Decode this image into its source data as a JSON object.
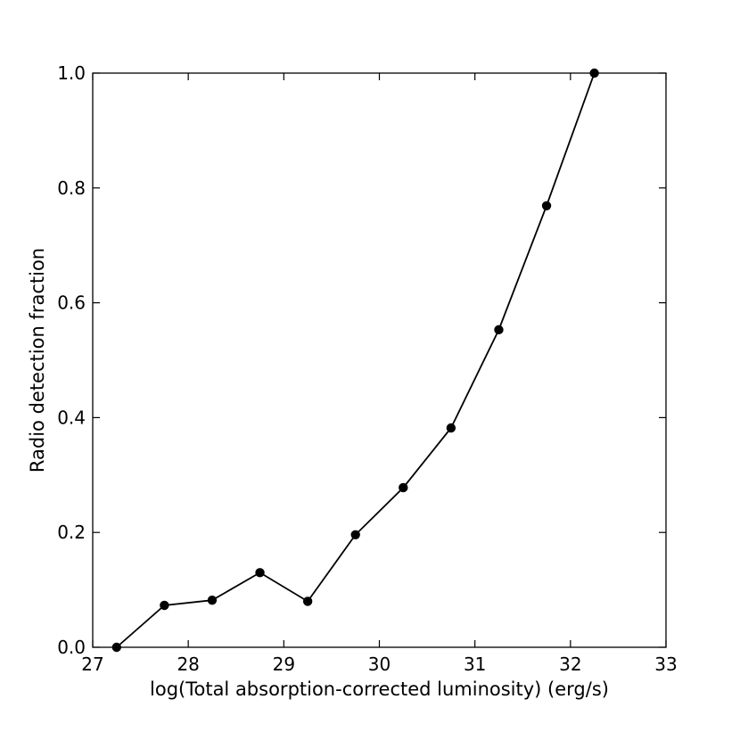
{
  "chart_data": {
    "type": "line",
    "title": "",
    "xlabel": "log(Total absorption-corrected luminosity) (erg/s)",
    "ylabel": "Radio detection fraction",
    "xlim": [
      27,
      33
    ],
    "ylim": [
      0.0,
      1.0
    ],
    "xticks": [
      27,
      28,
      29,
      30,
      31,
      32,
      33
    ],
    "xtick_labels": [
      "27",
      "28",
      "29",
      "30",
      "31",
      "32",
      "33"
    ],
    "yticks": [
      0.0,
      0.2,
      0.4,
      0.6,
      0.8,
      1.0
    ],
    "ytick_labels": [
      "0.0",
      "0.2",
      "0.4",
      "0.6",
      "0.8",
      "1.0"
    ],
    "grid": false,
    "legend": "none",
    "series": [
      {
        "color": "#000000",
        "marker": "circle",
        "x": [
          27.25,
          27.75,
          28.25,
          28.75,
          29.25,
          29.75,
          30.25,
          30.75,
          31.25,
          31.75,
          32.25
        ],
        "y": [
          0.0,
          0.073,
          0.082,
          0.13,
          0.08,
          0.196,
          0.278,
          0.382,
          0.553,
          0.769,
          1.0
        ]
      }
    ]
  }
}
